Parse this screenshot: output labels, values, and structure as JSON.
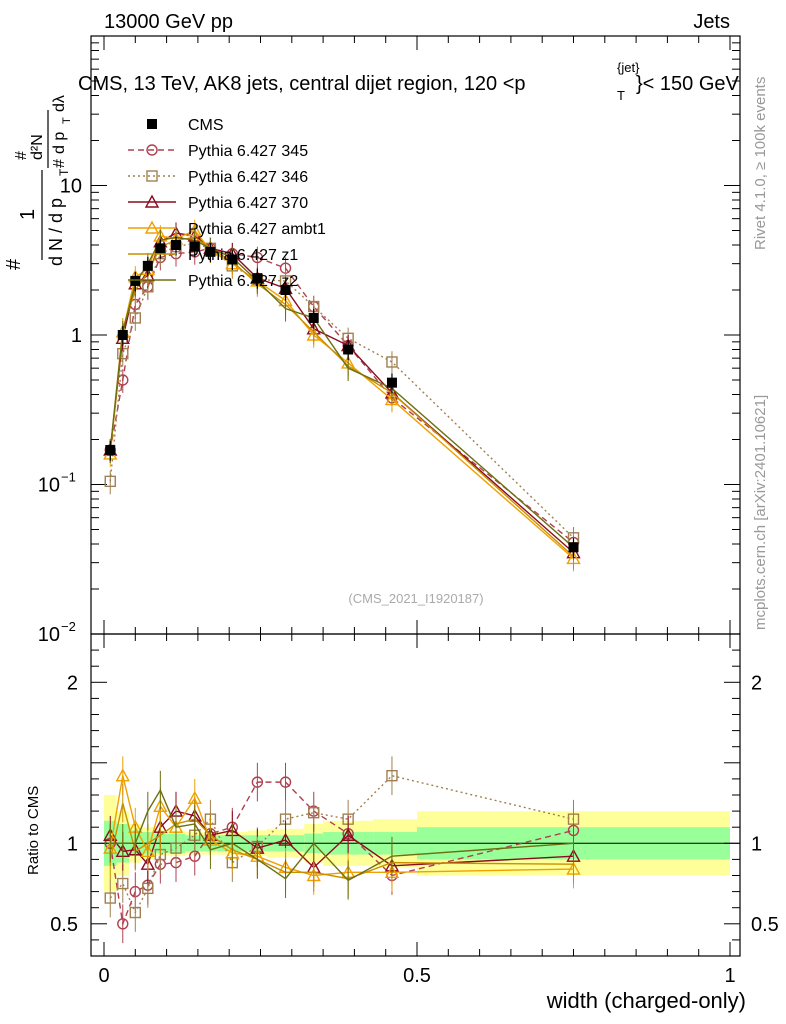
{
  "header": {
    "left": "13000 GeV pp",
    "right": "Jets"
  },
  "side_labels": {
    "rivet": "Rivet 4.1.0, ≥ 100k events",
    "mcplots": "mcplots.cern.ch [arXiv:2401.10621]"
  },
  "chart_data": {
    "type": "line",
    "title_parts": {
      "main": "CMS, 13 TeV, AK8 jets, central dijet region, 120 <p",
      "sub": "T",
      "sup": "{jet}",
      "tail": "}< 150 GeV"
    },
    "watermark": "(CMS_2021_I1920187)",
    "xlabel": "width (charged-only)",
    "ylabel_top": {
      "one": "1",
      "hash": "#",
      "dN": "d N / d p",
      "dN_sub": "T",
      "num": "d²N",
      "den": "d p",
      "den_sub": "T",
      "dl": "dλ"
    },
    "ylabel_bottom": "Ratio to CMS",
    "xlim": [
      0,
      1
    ],
    "ylim_main": [
      0.01,
      100
    ],
    "ylim_ratio": [
      0.3,
      2.3
    ],
    "x_ticks": [
      {
        "value": 0,
        "label": "0"
      },
      {
        "value": 0.5,
        "label": "0.5"
      },
      {
        "value": 1,
        "label": "1"
      }
    ],
    "y_ticks_main": [
      {
        "value": 10,
        "base": "10",
        "exp": ""
      },
      {
        "value": 1,
        "base": "1",
        "exp": ""
      },
      {
        "value": 0.1,
        "base": "10",
        "exp": "−1"
      },
      {
        "value": 0.01,
        "base": "10",
        "exp": "−2"
      }
    ],
    "y_ticks_ratio": [
      {
        "value": 2,
        "label": "2"
      },
      {
        "value": 1,
        "label": "1"
      },
      {
        "value": 0.5,
        "label": "0.5"
      }
    ],
    "x": [
      0.01,
      0.03,
      0.05,
      0.07,
      0.09,
      0.115,
      0.145,
      0.17,
      0.205,
      0.245,
      0.29,
      0.335,
      0.39,
      0.46,
      0.75
    ],
    "bin_edges": [
      0,
      0.02,
      0.04,
      0.06,
      0.08,
      0.1,
      0.13,
      0.16,
      0.18,
      0.23,
      0.26,
      0.32,
      0.35,
      0.43,
      0.5,
      1.0
    ],
    "band_inner": [
      0.14,
      0.12,
      0.08,
      0.07,
      0.06,
      0.06,
      0.05,
      0.05,
      0.05,
      0.05,
      0.05,
      0.06,
      0.07,
      0.07,
      0.1
    ],
    "band_outer": [
      0.3,
      0.2,
      0.12,
      0.1,
      0.08,
      0.08,
      0.07,
      0.07,
      0.07,
      0.08,
      0.09,
      0.12,
      0.14,
      0.15,
      0.2
    ],
    "data": {
      "name": "CMS",
      "color": "#000000",
      "values": [
        0.17,
        1.0,
        2.3,
        2.9,
        3.8,
        4.0,
        3.9,
        3.6,
        3.2,
        2.4,
        2.0,
        1.3,
        0.8,
        0.48,
        0.038
      ]
    },
    "series": [
      {
        "name": "Pythia 6.427 345",
        "color": "#b04050",
        "dash": "6,4",
        "marker": "circle",
        "values": [
          0.17,
          0.5,
          1.6,
          2.1,
          3.3,
          3.5,
          3.6,
          3.8,
          3.5,
          3.3,
          2.8,
          1.55,
          0.85,
          0.38,
          0.041
        ],
        "ratio": [
          1.0,
          0.5,
          0.7,
          0.74,
          0.87,
          0.88,
          0.92,
          1.06,
          1.1,
          1.38,
          1.38,
          1.2,
          1.06,
          0.8,
          1.08
        ]
      },
      {
        "name": "Pythia 6.427 346",
        "color": "#a08050",
        "dash": "2,3",
        "marker": "square",
        "values": [
          0.105,
          0.75,
          1.3,
          2.1,
          3.5,
          3.9,
          4.1,
          3.8,
          2.9,
          2.35,
          2.3,
          1.55,
          0.95,
          0.66,
          0.044
        ],
        "ratio": [
          0.66,
          0.75,
          0.57,
          0.72,
          0.93,
          0.97,
          1.05,
          1.15,
          0.88,
          0.98,
          1.15,
          1.19,
          1.15,
          1.42,
          1.15
        ]
      },
      {
        "name": "Pythia 6.427 370",
        "color": "#8b0c20",
        "dash": "",
        "marker": "triangle",
        "values": [
          0.17,
          0.95,
          2.2,
          2.5,
          4.2,
          4.8,
          4.6,
          3.8,
          3.5,
          2.4,
          2.05,
          1.1,
          0.85,
          0.41,
          0.035
        ],
        "ratio": [
          1.05,
          0.95,
          0.96,
          0.87,
          1.1,
          1.2,
          1.17,
          1.05,
          1.08,
          0.97,
          1.02,
          0.85,
          1.05,
          0.86,
          0.92
        ]
      },
      {
        "name": "Pythia 6.427 ambt1",
        "color": "#f0a000",
        "dash": "",
        "marker": "triangle",
        "values": [
          0.16,
          1.05,
          2.45,
          2.75,
          4.6,
          4.4,
          5.0,
          3.7,
          3.0,
          2.3,
          1.7,
          1.0,
          0.65,
          0.37,
          0.032
        ],
        "ratio": [
          0.97,
          1.42,
          1.1,
          0.95,
          1.23,
          1.1,
          1.28,
          1.02,
          0.94,
          0.92,
          0.85,
          0.8,
          0.82,
          0.82,
          0.84
        ]
      },
      {
        "name": "Pythia 6.427 z1",
        "color": "#c89000",
        "dash": "",
        "marker": "none",
        "values": [
          0.17,
          1.1,
          2.0,
          2.6,
          3.9,
          4.3,
          4.5,
          3.8,
          3.1,
          2.2,
          1.6,
          1.05,
          0.62,
          0.41,
          0.033
        ],
        "ratio": [
          0.9,
          1.25,
          0.95,
          1.0,
          1.05,
          1.12,
          1.15,
          1.05,
          0.96,
          0.9,
          0.82,
          0.82,
          0.78,
          0.88,
          0.87
        ]
      },
      {
        "name": "Pythia 6.427 z2",
        "color": "#6b7010",
        "dash": "",
        "marker": "none",
        "values": [
          0.17,
          1.05,
          2.2,
          3.0,
          4.3,
          4.5,
          4.3,
          3.8,
          3.3,
          2.3,
          1.5,
          1.3,
          0.6,
          0.44,
          0.038
        ],
        "ratio": [
          1.0,
          1.0,
          1.0,
          1.2,
          1.33,
          1.1,
          1.12,
          0.96,
          1.0,
          0.9,
          0.78,
          1.0,
          0.77,
          0.92,
          1.0
        ]
      }
    ]
  }
}
